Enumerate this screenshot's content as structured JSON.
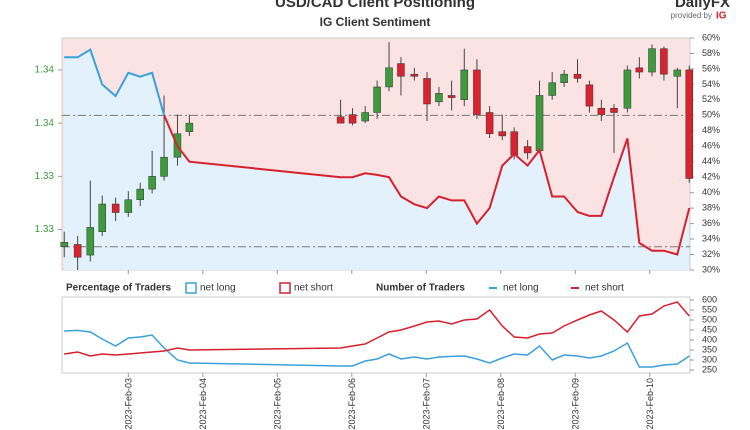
{
  "header": {
    "title": "USD/CAD Client Positioning",
    "logo": "DailyFX",
    "provided_by": "provided by",
    "brand": "IG"
  },
  "chart_data": [
    {
      "type": "candlestick",
      "title": "IG Client Sentiment",
      "x": [
        2.14,
        2.32,
        2.49,
        2.65,
        2.83,
        3.0,
        3.16,
        3.32,
        3.48,
        3.66,
        3.82,
        5.85,
        6.01,
        6.18,
        6.34,
        6.5,
        6.66,
        6.84,
        7.01,
        7.17,
        7.34,
        7.51,
        7.68,
        7.85,
        8.02,
        8.18,
        8.36,
        8.52,
        8.69,
        8.85,
        9.03,
        9.19,
        9.35,
        9.52,
        9.7,
        9.86,
        10.03,
        10.19,
        10.37,
        10.53
      ],
      "open": [
        1.3342,
        1.3343,
        1.3338,
        1.3349,
        1.3362,
        1.3358,
        1.3364,
        1.3369,
        1.3375,
        1.3384,
        1.3396,
        1.3403,
        1.3404,
        1.3401,
        1.3405,
        1.3417,
        1.3428,
        1.3423,
        1.3421,
        1.341,
        1.3413,
        1.3411,
        1.3425,
        1.3405,
        1.3396,
        1.3396,
        1.3389,
        1.3387,
        1.3413,
        1.3419,
        1.3423,
        1.3418,
        1.3407,
        1.3407,
        1.3407,
        1.3426,
        1.3424,
        1.3435,
        1.3422,
        1.3425
      ],
      "high": [
        1.3349,
        1.3347,
        1.3373,
        1.3366,
        1.3365,
        1.3368,
        1.3372,
        1.3387,
        1.3413,
        1.3404,
        1.3404,
        1.3411,
        1.3407,
        1.3408,
        1.342,
        1.3438,
        1.3431,
        1.3426,
        1.3424,
        1.3417,
        1.342,
        1.3435,
        1.343,
        1.3408,
        1.3404,
        1.3398,
        1.3392,
        1.342,
        1.3424,
        1.3425,
        1.343,
        1.342,
        1.3411,
        1.3409,
        1.3427,
        1.3431,
        1.3437,
        1.3436,
        1.3426,
        1.3427
      ],
      "low": [
        1.3337,
        1.3331,
        1.3335,
        1.3347,
        1.3354,
        1.3356,
        1.3361,
        1.3367,
        1.3373,
        1.338,
        1.3394,
        1.34,
        1.3399,
        1.34,
        1.3402,
        1.3415,
        1.3413,
        1.342,
        1.3401,
        1.3408,
        1.3406,
        1.3408,
        1.3402,
        1.3393,
        1.3392,
        1.3383,
        1.3383,
        1.3386,
        1.3411,
        1.3417,
        1.3419,
        1.3405,
        1.3401,
        1.3386,
        1.3405,
        1.3421,
        1.3422,
        1.342,
        1.3407,
        1.3372
      ],
      "close": [
        1.3344,
        1.3337,
        1.3351,
        1.3362,
        1.3358,
        1.3364,
        1.3369,
        1.3375,
        1.3384,
        1.3395,
        1.34,
        1.34,
        1.34,
        1.3405,
        1.3417,
        1.3426,
        1.3422,
        1.3422,
        1.3409,
        1.3414,
        1.3412,
        1.3425,
        1.3404,
        1.3395,
        1.3394,
        1.3385,
        1.3386,
        1.3413,
        1.3419,
        1.3423,
        1.3421,
        1.3408,
        1.3404,
        1.3405,
        1.3425,
        1.3424,
        1.3435,
        1.3423,
        1.3425,
        1.3374
      ],
      "up_color": "#3d9a3d",
      "down_color": "#d9232e",
      "xlim": [
        2.11,
        10.54
      ],
      "ylim": [
        1.3331,
        1.344
      ],
      "yticks": [
        {
          "value": 1.3425,
          "label": "1.34"
        },
        {
          "value": 1.34,
          "label": "1.34"
        },
        {
          "value": 1.3375,
          "label": "1.33"
        },
        {
          "value": 1.335,
          "label": "1.33"
        }
      ],
      "y2lim": [
        30,
        60
      ],
      "y2ticks": [
        {
          "value": 30,
          "label": "30%"
        },
        {
          "value": 32,
          "label": "32%"
        },
        {
          "value": 34,
          "label": "34%"
        },
        {
          "value": 36,
          "label": "36%"
        },
        {
          "value": 38,
          "label": "38%"
        },
        {
          "value": 40,
          "label": "40%"
        },
        {
          "value": 42,
          "label": "42%"
        },
        {
          "value": 44,
          "label": "44%"
        },
        {
          "value": 46,
          "label": "46%"
        },
        {
          "value": 48,
          "label": "48%"
        },
        {
          "value": 50,
          "label": "50%"
        },
        {
          "value": 52,
          "label": "52%"
        },
        {
          "value": 54,
          "label": "54%"
        },
        {
          "value": 56,
          "label": "56%"
        },
        {
          "value": 58,
          "label": "58%"
        },
        {
          "value": 60,
          "label": "60%"
        }
      ],
      "line": {
        "axis": "y2",
        "threshold": 50,
        "values": [
          57.5,
          57.5,
          58.5,
          54,
          52.5,
          55.5,
          55,
          55.5,
          50,
          46,
          44,
          42,
          42,
          42.5,
          42.3,
          42,
          39.5,
          38.5,
          38,
          39.5,
          39,
          39,
          36,
          38,
          43.5,
          45,
          43.5,
          45.5,
          39.5,
          39.5,
          37.5,
          37,
          37,
          42,
          47,
          33.5,
          32.5,
          32.5,
          32,
          38
        ]
      },
      "reference_lines": [
        50,
        33
      ],
      "legend_title": "Percentage of Traders",
      "legend": [
        {
          "name": "net long",
          "color": "#3aa0dc"
        },
        {
          "name": "net short",
          "color": "#d6202c"
        }
      ]
    },
    {
      "type": "line",
      "legend_title": "Number of Traders",
      "x": [
        2.14,
        2.32,
        2.49,
        2.65,
        2.83,
        3.0,
        3.16,
        3.32,
        3.48,
        3.66,
        3.82,
        5.85,
        6.01,
        6.18,
        6.34,
        6.5,
        6.66,
        6.84,
        7.01,
        7.17,
        7.34,
        7.51,
        7.68,
        7.85,
        8.02,
        8.18,
        8.36,
        8.52,
        8.69,
        8.85,
        9.03,
        9.19,
        9.35,
        9.52,
        9.7,
        9.86,
        10.03,
        10.19,
        10.37,
        10.53
      ],
      "xlim": [
        2.11,
        10.54
      ],
      "xticks": [
        {
          "value": 3,
          "label": "2023-Feb-03"
        },
        {
          "value": 4,
          "label": "2023-Feb-04"
        },
        {
          "value": 5,
          "label": "2023-Feb-05"
        },
        {
          "value": 6,
          "label": "2023-Feb-06"
        },
        {
          "value": 7,
          "label": "2023-Feb-07"
        },
        {
          "value": 8,
          "label": "2023-Feb-08"
        },
        {
          "value": 9,
          "label": "2023-Feb-09"
        },
        {
          "value": 10,
          "label": "2023-Feb-10"
        }
      ],
      "ylim": [
        250,
        600
      ],
      "yticks": [
        250,
        300,
        350,
        400,
        450,
        500,
        550,
        600
      ],
      "series": [
        {
          "name": "net long",
          "color": "#3aa0dc",
          "values": [
            445,
            448,
            440,
            405,
            370,
            410,
            415,
            425,
            360,
            300,
            285,
            270,
            270,
            295,
            305,
            330,
            305,
            315,
            305,
            315,
            318,
            320,
            305,
            285,
            310,
            330,
            325,
            370,
            300,
            325,
            320,
            310,
            320,
            345,
            385,
            265,
            265,
            275,
            280,
            320
          ]
        },
        {
          "name": "net short",
          "color": "#d6202c",
          "values": [
            330,
            340,
            320,
            330,
            325,
            330,
            335,
            340,
            345,
            360,
            350,
            360,
            370,
            380,
            410,
            440,
            450,
            470,
            490,
            495,
            480,
            500,
            505,
            550,
            470,
            415,
            410,
            430,
            435,
            470,
            500,
            525,
            545,
            500,
            440,
            520,
            530,
            570,
            590,
            520
          ]
        }
      ]
    }
  ]
}
